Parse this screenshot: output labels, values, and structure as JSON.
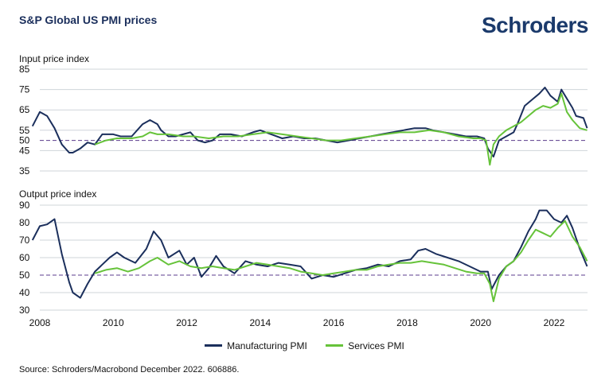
{
  "title": "S&P Global US PMI prices",
  "logo_text": "Schroders",
  "source": "Source: Schroders/Macrobond December 2022. 606886.",
  "colors": {
    "manufacturing": "#1b2f5c",
    "services": "#66c33a",
    "reference": "#5b3b8c",
    "grid": "#cfd4da",
    "title": "#1b2f5c"
  },
  "legend": [
    {
      "label": "Manufacturing PMI",
      "color": "#1b2f5c"
    },
    {
      "label": "Services PMI",
      "color": "#66c33a"
    }
  ],
  "chart_data": [
    {
      "type": "line",
      "title": "Input price index",
      "x_ticks": [
        "2008",
        "2010",
        "2012",
        "2014",
        "2016",
        "2018",
        "2020",
        "2022"
      ],
      "ylim": [
        35,
        85
      ],
      "y_ticks": [
        35,
        45,
        50,
        55,
        65,
        75,
        85
      ],
      "reference_line": 50,
      "grid": true,
      "series": [
        {
          "name": "Manufacturing PMI",
          "x": [
            2007.8,
            2008.0,
            2008.2,
            2008.4,
            2008.6,
            2008.8,
            2008.9,
            2009.1,
            2009.3,
            2009.5,
            2009.7,
            2009.8,
            2010.0,
            2010.2,
            2010.5,
            2010.8,
            2011.0,
            2011.2,
            2011.3,
            2011.5,
            2011.7,
            2011.9,
            2012.1,
            2012.3,
            2012.5,
            2012.7,
            2012.9,
            2013.2,
            2013.5,
            2013.8,
            2014.0,
            2014.3,
            2014.6,
            2014.9,
            2015.2,
            2015.5,
            2015.8,
            2016.1,
            2016.4,
            2016.7,
            2017.0,
            2017.3,
            2017.6,
            2017.9,
            2018.2,
            2018.5,
            2018.7,
            2019.0,
            2019.3,
            2019.6,
            2019.9,
            2020.1,
            2020.2,
            2020.35,
            2020.5,
            2020.7,
            2020.9,
            2021.0,
            2021.2,
            2021.4,
            2021.6,
            2021.75,
            2021.9,
            2022.1,
            2022.2,
            2022.3,
            2022.5,
            2022.6,
            2022.8,
            2022.9
          ],
          "y": [
            57,
            64,
            62,
            56,
            48,
            44,
            44,
            46,
            49,
            48,
            53,
            53,
            53,
            52,
            52,
            58,
            60,
            58,
            55,
            52,
            52,
            53,
            54,
            50,
            49,
            50,
            53,
            53,
            52,
            54,
            55,
            53,
            51,
            52,
            51,
            51,
            50,
            49,
            50,
            51,
            52,
            53,
            54,
            55,
            56,
            56,
            55,
            54,
            53,
            52,
            52,
            51,
            46,
            42,
            50,
            52,
            54,
            58,
            67,
            70,
            73,
            76,
            72,
            69,
            75,
            72,
            66,
            62,
            61,
            56
          ]
        },
        {
          "name": "Services PMI",
          "x": [
            2009.5,
            2009.8,
            2010.1,
            2010.5,
            2010.8,
            2011.0,
            2011.2,
            2011.5,
            2011.9,
            2012.2,
            2012.6,
            2013.0,
            2013.4,
            2013.8,
            2014.2,
            2014.6,
            2015.0,
            2015.4,
            2015.8,
            2016.2,
            2016.6,
            2017.0,
            2017.4,
            2017.8,
            2018.2,
            2018.6,
            2019.0,
            2019.4,
            2019.8,
            2020.0,
            2020.15,
            2020.25,
            2020.35,
            2020.5,
            2020.7,
            2020.9,
            2021.1,
            2021.3,
            2021.5,
            2021.7,
            2021.9,
            2022.1,
            2022.2,
            2022.35,
            2022.5,
            2022.7,
            2022.9
          ],
          "y": [
            48,
            50,
            51,
            51,
            52,
            54,
            53,
            53,
            52,
            52,
            51,
            52,
            52,
            53,
            54,
            53,
            52,
            51,
            50,
            50,
            51,
            52,
            53,
            54,
            54,
            55,
            54,
            52,
            51,
            51,
            50,
            38,
            48,
            52,
            55,
            57,
            59,
            62,
            65,
            67,
            66,
            68,
            73,
            64,
            60,
            56,
            55
          ]
        }
      ]
    },
    {
      "type": "line",
      "title": "Output price index",
      "x_ticks": [
        "2008",
        "2010",
        "2012",
        "2014",
        "2016",
        "2018",
        "2020",
        "2022"
      ],
      "ylim": [
        30,
        90
      ],
      "y_ticks": [
        30,
        40,
        50,
        60,
        70,
        80,
        90
      ],
      "reference_line": 50,
      "grid": true,
      "series": [
        {
          "name": "Manufacturing PMI",
          "x": [
            2007.8,
            2008.0,
            2008.2,
            2008.4,
            2008.5,
            2008.6,
            2008.8,
            2008.9,
            2009.1,
            2009.3,
            2009.5,
            2009.7,
            2009.9,
            2010.1,
            2010.3,
            2010.6,
            2010.9,
            2011.1,
            2011.3,
            2011.5,
            2011.8,
            2012.0,
            2012.2,
            2012.4,
            2012.6,
            2012.8,
            2013.0,
            2013.3,
            2013.6,
            2013.9,
            2014.2,
            2014.5,
            2014.8,
            2015.1,
            2015.4,
            2015.7,
            2016.0,
            2016.3,
            2016.6,
            2016.9,
            2017.2,
            2017.5,
            2017.8,
            2018.1,
            2018.3,
            2018.5,
            2018.8,
            2019.1,
            2019.4,
            2019.7,
            2020.0,
            2020.2,
            2020.3,
            2020.5,
            2020.7,
            2020.9,
            2021.1,
            2021.3,
            2021.5,
            2021.6,
            2021.8,
            2022.0,
            2022.2,
            2022.35,
            2022.5,
            2022.7,
            2022.9
          ],
          "y": [
            70,
            78,
            79,
            82,
            72,
            62,
            46,
            40,
            37,
            45,
            52,
            56,
            60,
            63,
            60,
            57,
            65,
            75,
            70,
            60,
            64,
            56,
            60,
            49,
            54,
            61,
            55,
            51,
            58,
            56,
            55,
            57,
            56,
            55,
            48,
            50,
            49,
            51,
            53,
            54,
            56,
            55,
            58,
            59,
            64,
            65,
            62,
            60,
            58,
            55,
            52,
            52,
            42,
            50,
            55,
            58,
            66,
            75,
            82,
            87,
            87,
            82,
            80,
            84,
            77,
            65,
            55
          ]
        },
        {
          "name": "Services PMI",
          "x": [
            2009.5,
            2009.8,
            2010.1,
            2010.4,
            2010.7,
            2011.0,
            2011.2,
            2011.5,
            2011.8,
            2012.1,
            2012.4,
            2012.7,
            2013.0,
            2013.3,
            2013.6,
            2013.9,
            2014.2,
            2014.5,
            2014.8,
            2015.1,
            2015.4,
            2015.7,
            2016.0,
            2016.3,
            2016.6,
            2016.9,
            2017.2,
            2017.5,
            2017.8,
            2018.1,
            2018.4,
            2018.7,
            2019.0,
            2019.3,
            2019.6,
            2019.9,
            2020.1,
            2020.25,
            2020.35,
            2020.5,
            2020.7,
            2020.9,
            2021.1,
            2021.3,
            2021.5,
            2021.7,
            2021.9,
            2022.1,
            2022.3,
            2022.5,
            2022.7,
            2022.9
          ],
          "y": [
            51,
            53,
            54,
            52,
            54,
            58,
            60,
            56,
            58,
            55,
            54,
            55,
            54,
            53,
            55,
            57,
            56,
            55,
            54,
            52,
            51,
            50,
            51,
            52,
            53,
            53,
            55,
            56,
            57,
            57,
            58,
            57,
            56,
            54,
            52,
            51,
            51,
            45,
            35,
            48,
            55,
            58,
            63,
            70,
            76,
            74,
            72,
            77,
            81,
            72,
            66,
            58
          ]
        }
      ]
    }
  ]
}
